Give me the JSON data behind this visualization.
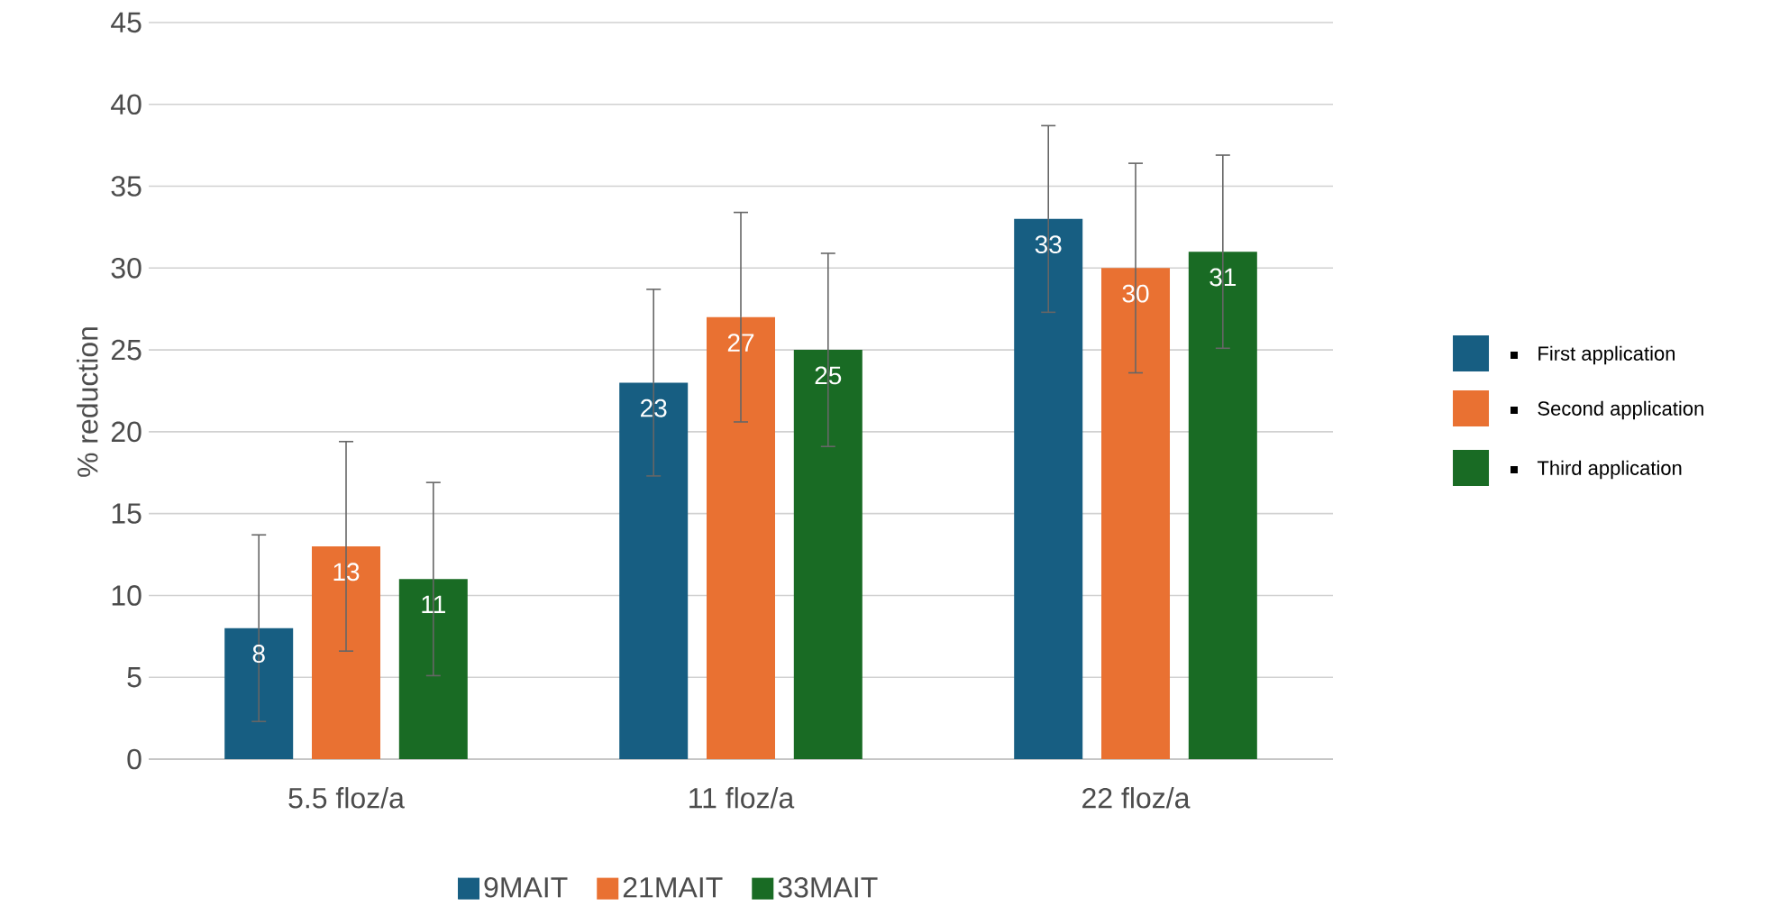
{
  "chart_data": {
    "type": "bar",
    "ylabel": "% reduction",
    "categories": [
      "5.5 floz/a",
      "11 floz/a",
      "22 floz/a"
    ],
    "series": [
      {
        "name": "9MAIT",
        "color": "#175e82",
        "values": [
          8,
          23,
          33
        ],
        "errors": [
          5.7,
          5.7,
          5.7
        ]
      },
      {
        "name": "21MAIT",
        "color": "#e97132",
        "values": [
          13,
          27,
          30
        ],
        "errors": [
          6.4,
          6.4,
          6.4
        ]
      },
      {
        "name": "33MAIT",
        "color": "#196b24",
        "values": [
          11,
          25,
          31
        ],
        "errors": [
          5.9,
          5.9,
          5.9
        ]
      }
    ],
    "ylim": [
      0,
      45
    ],
    "yticks": [
      0,
      5,
      10,
      15,
      20,
      25,
      30,
      35,
      40,
      45
    ],
    "grid": "y",
    "legend": "bottom",
    "data_labels": true,
    "annotations": [
      "First application",
      "Second application",
      "Third application"
    ]
  }
}
